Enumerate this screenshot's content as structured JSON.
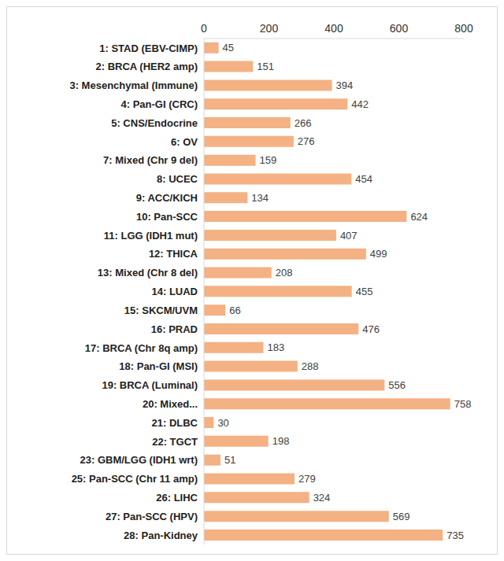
{
  "chart_data": {
    "type": "bar",
    "orientation": "horizontal",
    "categories": [
      "1: STAD (EBV-CIMP)",
      "2: BRCA (HER2 amp)",
      "3: Mesenchymal (Immune)",
      "4: Pan-GI (CRC)",
      "5: CNS/Endocrine",
      "6: OV",
      "7: Mixed (Chr 9 del)",
      "8: UCEC",
      "9: ACC/KICH",
      "10: Pan-SCC",
      "11: LGG (IDH1 mut)",
      "12: THICA",
      "13: Mixed (Chr 8 del)",
      "14: LUAD",
      "15: SKCM/UVM",
      "16: PRAD",
      "17: BRCA (Chr 8q amp)",
      "18: Pan-GI (MSI)",
      "19: BRCA (Luminal)",
      "20: Mixed...",
      "21: DLBC",
      "22: TGCT",
      "23: GBM/LGG (IDH1 wrt)",
      "25: Pan-SCC (Chr 11 amp)",
      "26: LIHC",
      "27: Pan-SCC (HPV)",
      "28: Pan-Kidney"
    ],
    "values": [
      45,
      151,
      394,
      442,
      266,
      276,
      159,
      454,
      134,
      624,
      407,
      499,
      208,
      455,
      66,
      476,
      183,
      288,
      556,
      758,
      30,
      198,
      51,
      279,
      324,
      569,
      735
    ],
    "color": "#f4b183",
    "ylim": [
      0,
      800
    ],
    "yticks": [
      0,
      200,
      400,
      600,
      800
    ],
    "grid": false,
    "data_labels": true
  }
}
